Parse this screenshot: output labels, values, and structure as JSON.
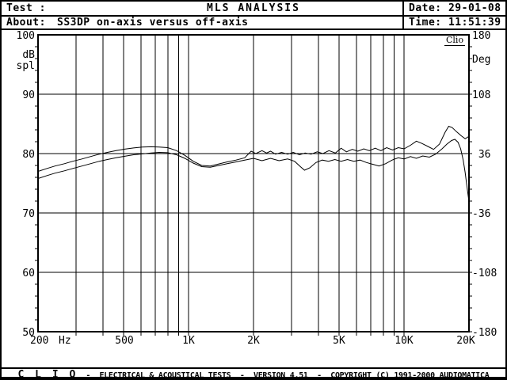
{
  "header": {
    "test_label": "Test :",
    "title": "MLS ANALYSIS",
    "about_label": "About:",
    "about_value": "SS3DP on-axis versus off-axis",
    "date_value": "Date: 29-01-08",
    "time_value": "Time: 11:51:39"
  },
  "statusbar": {
    "brand": "C L I O",
    "text": "-  ELECTRICAL & ACOUSTICAL TESTS  -  VERSION 4.51  -  COPYRIGHT (C) 1991-2000 AUDIOMATICA"
  },
  "chart": {
    "watermark": "Clio",
    "left_axis": {
      "unit_line1": "dB",
      "unit_line2": "spl",
      "labels": [
        "100",
        "90",
        "80",
        "70",
        "60",
        "50"
      ]
    },
    "right_axis": {
      "unit": "Deg",
      "labels": [
        "180",
        "108",
        " 36",
        "-36",
        "-108",
        "-180"
      ]
    },
    "x_axis": {
      "unit": "Hz",
      "labels": [
        "200",
        "500",
        "1K",
        "2K",
        "5K",
        "10K",
        "20K"
      ]
    },
    "colors": {
      "ink": "#000000",
      "paper": "#ffffff"
    }
  },
  "chart_data": {
    "type": "line",
    "title": "MLS ANALYSIS - SS3DP on-axis versus off-axis",
    "xlabel": "Hz",
    "ylabel_left": "dB spl",
    "ylabel_right": "Deg",
    "x_scale": "log",
    "x_range": [
      200,
      20000
    ],
    "ylim_left": [
      50,
      100
    ],
    "ylim_right": [
      -180,
      180
    ],
    "grid": true,
    "x_gridlines": [
      300,
      400,
      500,
      600,
      700,
      800,
      900,
      1000,
      2000,
      3000,
      4000,
      5000,
      6000,
      7000,
      8000,
      9000,
      10000
    ],
    "y_gridlines": [
      60,
      70,
      80,
      90
    ],
    "series": [
      {
        "name": "on-axis",
        "points": [
          [
            200,
            77.0
          ],
          [
            220,
            77.5
          ],
          [
            240,
            77.9
          ],
          [
            265,
            78.3
          ],
          [
            290,
            78.7
          ],
          [
            320,
            79.1
          ],
          [
            350,
            79.5
          ],
          [
            385,
            79.9
          ],
          [
            420,
            80.2
          ],
          [
            460,
            80.5
          ],
          [
            505,
            80.75
          ],
          [
            555,
            80.95
          ],
          [
            610,
            81.1
          ],
          [
            670,
            81.15
          ],
          [
            730,
            81.1
          ],
          [
            800,
            81.0
          ],
          [
            880,
            80.5
          ],
          [
            960,
            79.7
          ],
          [
            1050,
            78.7
          ],
          [
            1150,
            78.0
          ],
          [
            1260,
            77.9
          ],
          [
            1380,
            78.25
          ],
          [
            1510,
            78.6
          ],
          [
            1660,
            78.9
          ],
          [
            1820,
            79.3
          ],
          [
            1950,
            80.4
          ],
          [
            2050,
            80.0
          ],
          [
            2190,
            80.5
          ],
          [
            2300,
            80.1
          ],
          [
            2400,
            80.4
          ],
          [
            2530,
            79.9
          ],
          [
            2700,
            80.2
          ],
          [
            2880,
            79.9
          ],
          [
            3060,
            80.2
          ],
          [
            3270,
            79.8
          ],
          [
            3470,
            80.1
          ],
          [
            3700,
            79.9
          ],
          [
            3950,
            80.3
          ],
          [
            4200,
            80.0
          ],
          [
            4480,
            80.5
          ],
          [
            4800,
            80.1
          ],
          [
            5100,
            80.9
          ],
          [
            5400,
            80.3
          ],
          [
            5750,
            80.7
          ],
          [
            6100,
            80.4
          ],
          [
            6500,
            80.8
          ],
          [
            6900,
            80.5
          ],
          [
            7350,
            80.9
          ],
          [
            7800,
            80.5
          ],
          [
            8300,
            81.0
          ],
          [
            8850,
            80.6
          ],
          [
            9400,
            81.0
          ],
          [
            10000,
            80.8
          ],
          [
            10700,
            81.4
          ],
          [
            11400,
            82.1
          ],
          [
            12100,
            81.7
          ],
          [
            12900,
            81.2
          ],
          [
            13700,
            80.7
          ],
          [
            14600,
            81.6
          ],
          [
            15500,
            83.6
          ],
          [
            16100,
            84.6
          ],
          [
            16700,
            84.4
          ],
          [
            17500,
            83.7
          ],
          [
            18400,
            83.0
          ],
          [
            19200,
            82.5
          ],
          [
            20000,
            82.9
          ]
        ]
      },
      {
        "name": "off-axis",
        "points": [
          [
            200,
            75.8
          ],
          [
            220,
            76.3
          ],
          [
            240,
            76.7
          ],
          [
            265,
            77.1
          ],
          [
            290,
            77.5
          ],
          [
            320,
            77.9
          ],
          [
            350,
            78.3
          ],
          [
            385,
            78.7
          ],
          [
            420,
            79.0
          ],
          [
            460,
            79.3
          ],
          [
            505,
            79.55
          ],
          [
            555,
            79.8
          ],
          [
            610,
            79.95
          ],
          [
            670,
            80.1
          ],
          [
            730,
            80.2
          ],
          [
            800,
            80.15
          ],
          [
            880,
            79.8
          ],
          [
            960,
            79.2
          ],
          [
            1050,
            78.4
          ],
          [
            1150,
            77.8
          ],
          [
            1260,
            77.7
          ],
          [
            1380,
            78.0
          ],
          [
            1510,
            78.3
          ],
          [
            1660,
            78.6
          ],
          [
            1820,
            78.9
          ],
          [
            2000,
            79.2
          ],
          [
            2190,
            78.8
          ],
          [
            2400,
            79.2
          ],
          [
            2630,
            78.8
          ],
          [
            2880,
            79.1
          ],
          [
            3100,
            78.7
          ],
          [
            3300,
            77.8
          ],
          [
            3450,
            77.2
          ],
          [
            3650,
            77.6
          ],
          [
            3900,
            78.5
          ],
          [
            4170,
            78.9
          ],
          [
            4460,
            78.7
          ],
          [
            4770,
            79.0
          ],
          [
            5100,
            78.7
          ],
          [
            5460,
            79.0
          ],
          [
            5840,
            78.7
          ],
          [
            6250,
            78.9
          ],
          [
            6690,
            78.5
          ],
          [
            7150,
            78.2
          ],
          [
            7650,
            77.9
          ],
          [
            8200,
            78.3
          ],
          [
            8800,
            78.9
          ],
          [
            9400,
            79.3
          ],
          [
            10000,
            79.1
          ],
          [
            10700,
            79.5
          ],
          [
            11400,
            79.2
          ],
          [
            12200,
            79.6
          ],
          [
            13100,
            79.4
          ],
          [
            14000,
            79.9
          ],
          [
            15000,
            80.8
          ],
          [
            15800,
            81.6
          ],
          [
            16600,
            82.2
          ],
          [
            17200,
            82.4
          ],
          [
            17800,
            81.9
          ],
          [
            18300,
            80.8
          ],
          [
            18800,
            78.9
          ],
          [
            19200,
            76.8
          ],
          [
            19600,
            74.3
          ],
          [
            20000,
            71.9
          ]
        ]
      }
    ],
    "legend": "none"
  }
}
